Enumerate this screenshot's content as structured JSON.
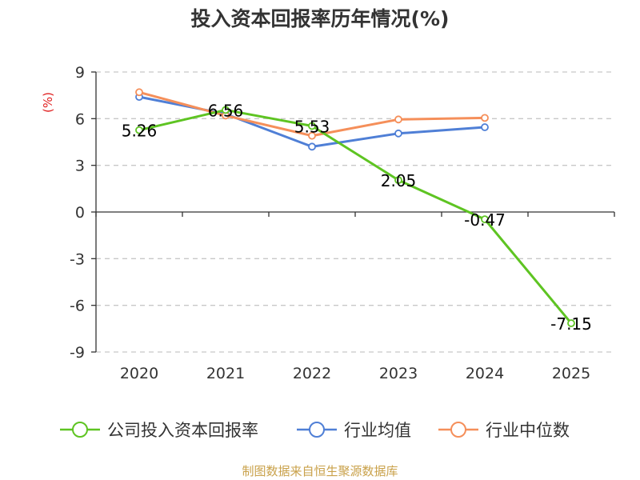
{
  "chart_data": {
    "type": "line",
    "title": "投入资本回报率历年情况(%)",
    "unit_label": "(%)",
    "categories": [
      "2020",
      "2021",
      "2022",
      "2023",
      "2024",
      "2025"
    ],
    "ylim": [
      -9,
      9
    ],
    "yticks": [
      9,
      6,
      3,
      0,
      -3,
      -6,
      -9
    ],
    "ytick_labels": [
      "9",
      "6",
      "3",
      "0",
      "-3",
      "-6",
      "-9"
    ],
    "grid": true,
    "legend_position": "bottom",
    "series": [
      {
        "name": "公司投入资本回报率",
        "color": "#5ec422",
        "values": [
          5.26,
          6.56,
          5.53,
          2.05,
          -0.47,
          -7.15
        ],
        "labels": [
          "5.26",
          "6.56",
          "5.53",
          "2.05",
          "-0.47",
          "-7.15"
        ]
      },
      {
        "name": "行业均值",
        "color": "#4f7fd6",
        "values": [
          7.4,
          6.3,
          4.2,
          5.05,
          5.45,
          null
        ],
        "labels": []
      },
      {
        "name": "行业中位数",
        "color": "#f58f5a",
        "values": [
          7.7,
          6.2,
          4.9,
          5.95,
          6.05,
          null
        ],
        "labels": []
      }
    ]
  },
  "source": "制图数据来自恒生聚源数据库"
}
